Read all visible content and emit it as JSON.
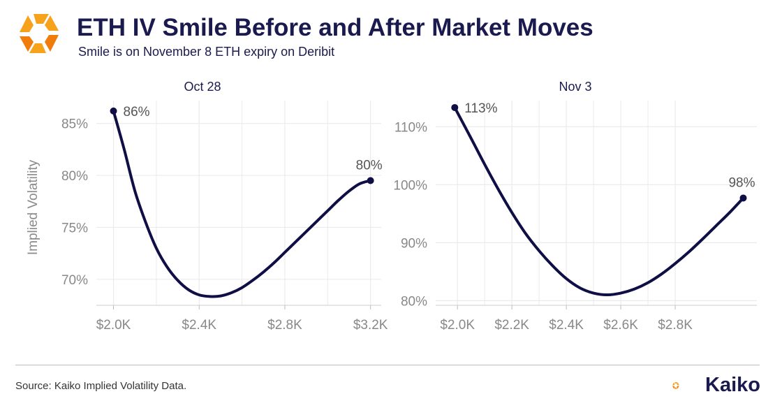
{
  "header": {
    "title": "ETH IV Smile Before and After Market Moves",
    "subtitle": "Smile is on November 8 ETH expiry on Deribit"
  },
  "colors": {
    "line": "#0f0f45",
    "accent_orange": "#f7a21b",
    "grid": "#ebebeb",
    "tick": "#888888"
  },
  "chart_data": [
    {
      "type": "line",
      "title": "Oct 28",
      "ylabel": "Implied Volatility",
      "xlim": [
        1920,
        3250
      ],
      "ylim": [
        67.5,
        87.2
      ],
      "x_ticks": [
        2000,
        2400,
        2800,
        3200
      ],
      "x_tick_labels": [
        "$2.0K",
        "$2.4K",
        "$2.8K",
        "$3.2K"
      ],
      "y_ticks": [
        70,
        75,
        80,
        85
      ],
      "y_tick_labels": [
        "70%",
        "75%",
        "80%",
        "85%"
      ],
      "x": [
        2000,
        2050,
        2100,
        2150,
        2200,
        2250,
        2300,
        2350,
        2400,
        2450,
        2500,
        2550,
        2600,
        2650,
        2700,
        2750,
        2800,
        2850,
        2900,
        2950,
        3000,
        3050,
        3100,
        3150,
        3200
      ],
      "y": [
        86.2,
        82.5,
        78.5,
        75.5,
        73.0,
        71.2,
        69.9,
        69.0,
        68.5,
        68.35,
        68.4,
        68.7,
        69.2,
        69.9,
        70.7,
        71.6,
        72.6,
        73.6,
        74.6,
        75.6,
        76.6,
        77.6,
        78.5,
        79.2,
        79.5
      ],
      "labels": [
        {
          "x": 2000,
          "y": 86.2,
          "text": "86%"
        },
        {
          "x": 3200,
          "y": 79.5,
          "text": "80%"
        }
      ]
    },
    {
      "type": "line",
      "title": "Nov 3",
      "ylabel": "",
      "xlim": [
        1920,
        3100
      ],
      "ylim": [
        79.2,
        114.5
      ],
      "x_ticks": [
        2000,
        2200,
        2400,
        2600,
        2800
      ],
      "x_tick_labels": [
        "$2.0K",
        "$2.2K",
        "$2.4K",
        "$2.6K",
        "$2.8K"
      ],
      "y_ticks": [
        80,
        90,
        100,
        110
      ],
      "y_tick_labels": [
        "80%",
        "90%",
        "100%",
        "110%"
      ],
      "x": [
        1990,
        2050,
        2100,
        2150,
        2200,
        2250,
        2300,
        2350,
        2400,
        2450,
        2500,
        2550,
        2600,
        2650,
        2700,
        2750,
        2800,
        2850,
        2900,
        2950,
        3000,
        3050
      ],
      "y": [
        113.3,
        108.0,
        103.5,
        99.2,
        95.2,
        91.6,
        88.6,
        86.0,
        83.8,
        82.2,
        81.3,
        81.0,
        81.3,
        82.0,
        83.1,
        84.6,
        86.4,
        88.4,
        90.6,
        92.9,
        95.2,
        97.7
      ],
      "labels": [
        {
          "x": 1990,
          "y": 113.3,
          "text": "113%"
        },
        {
          "x": 3050,
          "y": 97.7,
          "text": "98%"
        }
      ]
    }
  ],
  "footer": {
    "source": "Source: Kaiko Implied Volatility Data.",
    "brand": "Kaiko"
  }
}
